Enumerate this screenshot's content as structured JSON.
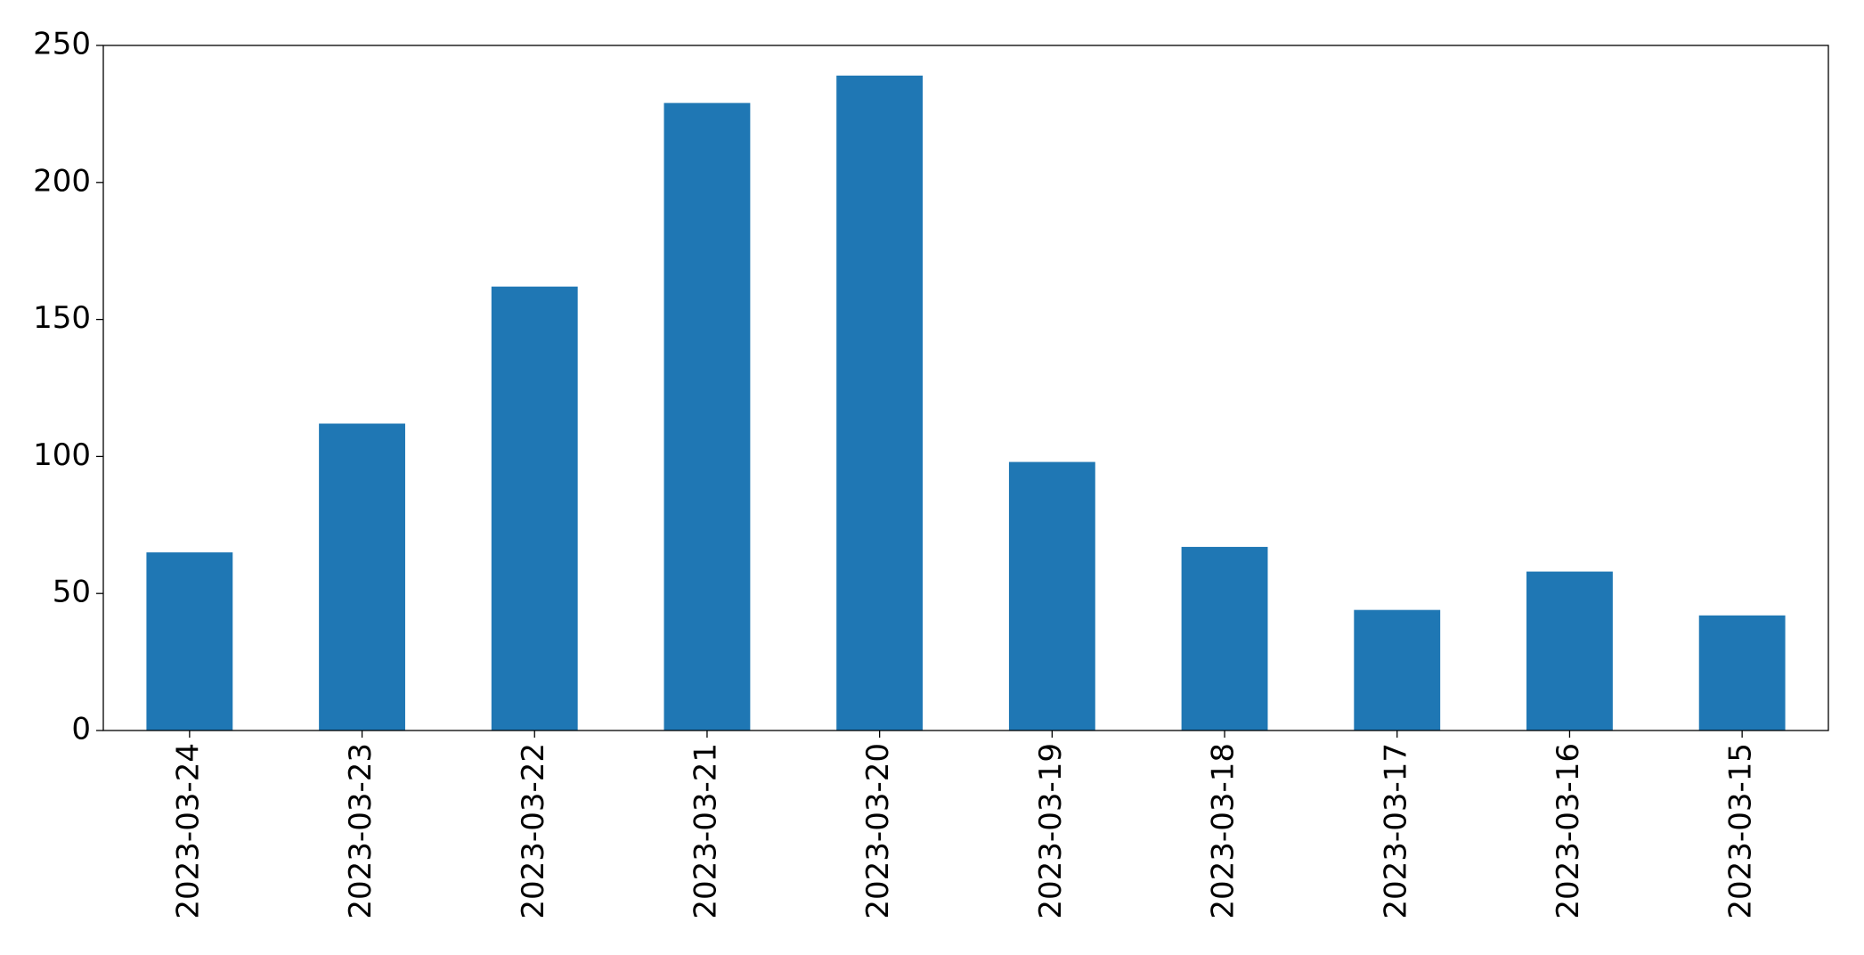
{
  "chart_data": {
    "type": "bar",
    "categories": [
      "2023-03-24",
      "2023-03-23",
      "2023-03-22",
      "2023-03-21",
      "2023-03-20",
      "2023-03-19",
      "2023-03-18",
      "2023-03-17",
      "2023-03-16",
      "2023-03-15"
    ],
    "values": [
      65,
      112,
      162,
      229,
      239,
      98,
      67,
      44,
      58,
      42
    ],
    "color": "#1f77b4",
    "ylim": [
      0,
      250
    ],
    "yticks": [
      0,
      50,
      100,
      150,
      200,
      250
    ],
    "grid": false
  }
}
